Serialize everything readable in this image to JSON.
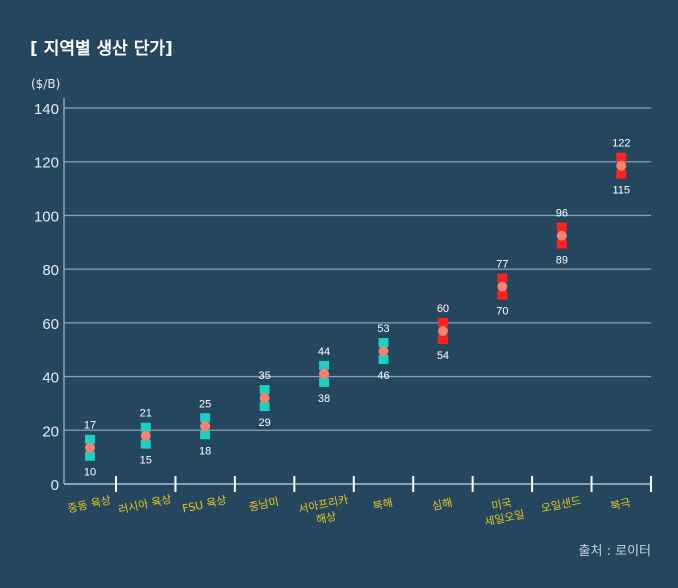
{
  "title": "[ 지역별 생산 단가]",
  "unit": "($/B)",
  "source": "출처 : 로이터",
  "colors": {
    "background": "#24465f",
    "low_cost": "#1dcfc0",
    "high_cost": "#ff2020",
    "midpoint": "#f58370",
    "category_label": "#e8c81e"
  },
  "chart_data": {
    "type": "range-dot",
    "title": "[ 지역별 생산 단가]",
    "ylabel": "($/B)",
    "ylim": [
      0,
      140
    ],
    "yticks": [
      0,
      20,
      40,
      60,
      80,
      100,
      120,
      140
    ],
    "grid": true,
    "categories": [
      [
        "중동 육상"
      ],
      [
        "러시아 육상"
      ],
      [
        "FSU 육상"
      ],
      [
        "중남미"
      ],
      [
        "서아프리카",
        "해상"
      ],
      [
        "북해"
      ],
      [
        "심해"
      ],
      [
        "미국",
        "세일오일"
      ],
      [
        "오일샌드"
      ],
      [
        "북극"
      ]
    ],
    "high": [
      17,
      21,
      25,
      35,
      44,
      53,
      60,
      77,
      96,
      122
    ],
    "low": [
      10,
      15,
      18,
      29,
      38,
      46,
      54,
      70,
      89,
      115
    ],
    "marker_color": [
      "low_cost",
      "low_cost",
      "low_cost",
      "low_cost",
      "low_cost",
      "low_cost",
      "high_cost",
      "high_cost",
      "high_cost",
      "high_cost"
    ]
  }
}
